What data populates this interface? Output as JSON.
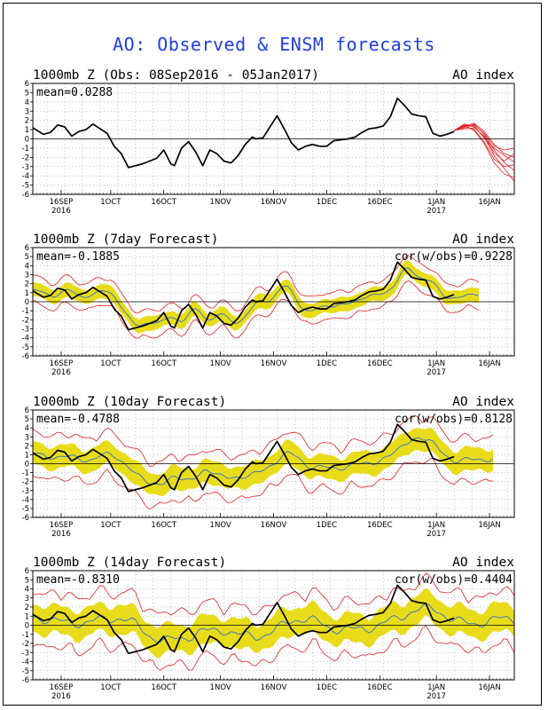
{
  "title": "AO: Observed & ENSM forecasts",
  "chart_data": [
    {
      "type": "line",
      "title": "1000mb Z (Obs: 08Sep2016 - 05Jan2017)",
      "right_label": "AO index",
      "mean_label": "mean=0.0288",
      "cor_label": "",
      "ylim": [
        -6,
        6
      ],
      "yticks": [
        6,
        5,
        4,
        3,
        2,
        1,
        0,
        -1,
        -2,
        -3,
        -4,
        -5,
        -6
      ],
      "xlim": [
        0,
        136
      ],
      "xticks": [
        {
          "x": 8,
          "label": "16SEP",
          "sub": "2016"
        },
        {
          "x": 22,
          "label": "1OCT",
          "sub": ""
        },
        {
          "x": 37,
          "label": "16OCT",
          "sub": ""
        },
        {
          "x": 53,
          "label": "1NOV",
          "sub": ""
        },
        {
          "x": 68,
          "label": "16NOV",
          "sub": ""
        },
        {
          "x": 83,
          "label": "1DEC",
          "sub": ""
        },
        {
          "x": 98,
          "label": "16DEC",
          "sub": ""
        },
        {
          "x": 114,
          "label": "1JAN",
          "sub": "2017"
        },
        {
          "x": 129,
          "label": "16JAN",
          "sub": ""
        }
      ],
      "observed": [
        [
          0,
          1.2
        ],
        [
          3,
          0.5
        ],
        [
          5,
          0.7
        ],
        [
          7,
          1.5
        ],
        [
          9,
          1.3
        ],
        [
          11,
          0.3
        ],
        [
          13,
          0.8
        ],
        [
          15,
          1.0
        ],
        [
          17,
          1.6
        ],
        [
          19,
          1.1
        ],
        [
          21,
          0.6
        ],
        [
          23,
          -0.8
        ],
        [
          25,
          -1.6
        ],
        [
          27,
          -3.1
        ],
        [
          29,
          -2.9
        ],
        [
          31,
          -2.7
        ],
        [
          33,
          -2.4
        ],
        [
          35,
          -2.1
        ],
        [
          37,
          -1.2
        ],
        [
          39,
          -2.7
        ],
        [
          40,
          -2.9
        ],
        [
          42,
          -1.0
        ],
        [
          44,
          -0.3
        ],
        [
          46,
          -1.4
        ],
        [
          48,
          -2.9
        ],
        [
          50,
          -1.2
        ],
        [
          52,
          -1.6
        ],
        [
          54,
          -2.4
        ],
        [
          56,
          -2.6
        ],
        [
          58,
          -1.8
        ],
        [
          60,
          -0.6
        ],
        [
          62,
          0.2
        ],
        [
          63,
          0.0
        ],
        [
          65,
          0.1
        ],
        [
          67,
          1.3
        ],
        [
          69,
          2.5
        ],
        [
          71,
          1.1
        ],
        [
          73,
          -0.4
        ],
        [
          75,
          -1.2
        ],
        [
          77,
          -0.8
        ],
        [
          79,
          -0.6
        ],
        [
          81,
          -0.8
        ],
        [
          83,
          -0.8
        ],
        [
          85,
          -0.2
        ],
        [
          87,
          -0.1
        ],
        [
          89,
          0.0
        ],
        [
          91,
          0.2
        ],
        [
          93,
          0.7
        ],
        [
          95,
          1.1
        ],
        [
          97,
          1.2
        ],
        [
          99,
          1.4
        ],
        [
          101,
          2.4
        ],
        [
          103,
          4.4
        ],
        [
          105,
          3.6
        ],
        [
          107,
          2.7
        ],
        [
          109,
          2.5
        ],
        [
          111,
          2.4
        ],
        [
          113,
          0.6
        ],
        [
          115,
          0.3
        ],
        [
          117,
          0.5
        ],
        [
          119,
          0.8
        ]
      ],
      "ensemble_start": [
        119,
        0.9
      ],
      "ensemble_members": [
        [
          1.5,
          1.3,
          0.2,
          -1.8,
          -3.2,
          -4.6
        ],
        [
          1.2,
          1.6,
          0.5,
          -1.2,
          -2.6,
          -3.4
        ],
        [
          1.4,
          1.0,
          -0.3,
          -2.2,
          -3.0,
          -2.8
        ],
        [
          1.6,
          1.4,
          0.1,
          -1.0,
          -1.8,
          -2.5
        ],
        [
          1.3,
          1.7,
          0.8,
          -0.6,
          -1.6,
          -2.0
        ],
        [
          1.1,
          1.2,
          0.3,
          -1.5,
          -2.4,
          -1.6
        ],
        [
          1.5,
          0.9,
          -0.5,
          -2.6,
          -3.8,
          -4.2
        ],
        [
          1.4,
          1.5,
          0.6,
          -0.8,
          -1.2,
          -1.0
        ]
      ]
    },
    {
      "type": "line",
      "title": "1000mb Z (7day Forecast)",
      "right_label": "AO index",
      "mean_label": "mean=-0.1885",
      "cor_label": "cor(w/obs)=0.9228",
      "ylim": [
        -6,
        6
      ],
      "yticks": [
        6,
        5,
        4,
        3,
        2,
        1,
        0,
        -1,
        -2,
        -3,
        -4,
        -5,
        -6
      ],
      "xlim": [
        0,
        136
      ],
      "forecast_lead": 2,
      "band_width": 0.8,
      "spread_width": 1.5,
      "forecast_end": 126
    },
    {
      "type": "line",
      "title": "1000mb Z (10day Forecast)",
      "right_label": "AO index",
      "mean_label": "mean=-0.4788",
      "cor_label": "cor(w/obs)=0.8128",
      "ylim": [
        -6,
        6
      ],
      "yticks": [
        6,
        5,
        4,
        3,
        2,
        1,
        0,
        -1,
        -2,
        -3,
        -4,
        -5,
        -6
      ],
      "xlim": [
        0,
        136
      ],
      "forecast_lead": 4,
      "band_width": 1.3,
      "spread_width": 2.5,
      "forecast_end": 130
    },
    {
      "type": "line",
      "title": "1000mb Z (14day Forecast)",
      "right_label": "AO index",
      "mean_label": "mean=-0.8310",
      "cor_label": "cor(w/obs)=0.4404",
      "ylim": [
        -6,
        6
      ],
      "yticks": [
        6,
        5,
        4,
        3,
        2,
        1,
        0,
        -1,
        -2,
        -3,
        -4,
        -5,
        -6
      ],
      "xlim": [
        0,
        136
      ],
      "forecast_lead": 7,
      "band_width": 1.6,
      "spread_width": 3.0,
      "forecast_end": 136
    }
  ],
  "colors": {
    "title": "#1f3fe0",
    "observed": "#000000",
    "ensemble_mean": "#2f6fd0",
    "band": "#e8dc1a",
    "spread": "#e02020",
    "grid": "#a0a0a0"
  }
}
